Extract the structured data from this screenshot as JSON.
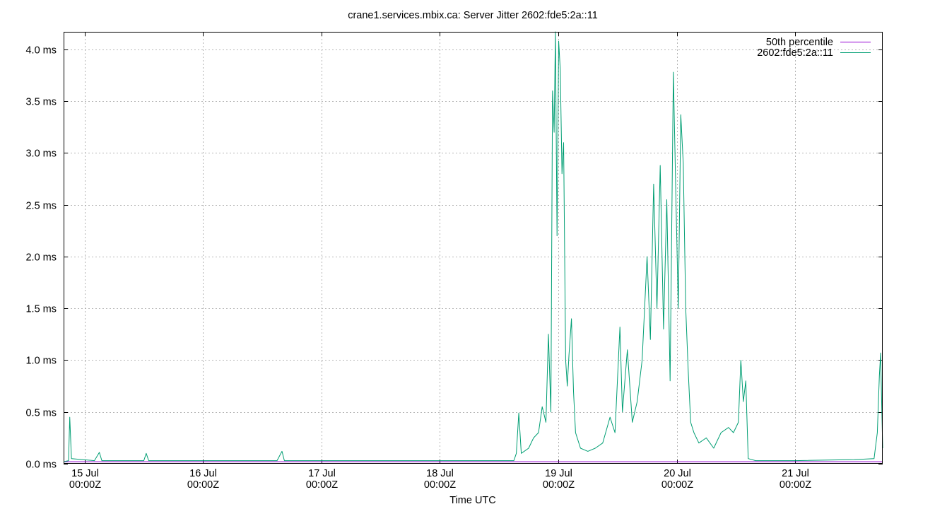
{
  "chart_data": {
    "type": "line",
    "title": "crane1.services.mbix.ca: Server Jitter 2602:fde5:2a::11",
    "xlabel": "Time UTC",
    "ylabel": "",
    "ylim": [
      0,
      4.17
    ],
    "xlim": [
      "2024-07-14 19:45Z",
      "2024-07-21 17:45Z"
    ],
    "x_ticks": [
      {
        "date": "15 Jul",
        "time": "00:00Z"
      },
      {
        "date": "16 Jul",
        "time": "00:00Z"
      },
      {
        "date": "17 Jul",
        "time": "00:00Z"
      },
      {
        "date": "18 Jul",
        "time": "00:00Z"
      },
      {
        "date": "19 Jul",
        "time": "00:00Z"
      },
      {
        "date": "20 Jul",
        "time": "00:00Z"
      },
      {
        "date": "21 Jul",
        "time": "00:00Z"
      }
    ],
    "y_ticks": [
      "0.0 ms",
      "0.5 ms",
      "1.0 ms",
      "1.5 ms",
      "2.0 ms",
      "2.5 ms",
      "3.0 ms",
      "3.5 ms",
      "4.0 ms"
    ],
    "y_tick_values": [
      0,
      0.5,
      1.0,
      1.5,
      2.0,
      2.5,
      3.0,
      3.5,
      4.0
    ],
    "grid": true,
    "legend_position": "top-right",
    "series": [
      {
        "name": "50th percentile",
        "color": "#9400d3",
        "points": [
          [
            "2024-07-14 19:45Z",
            0.02
          ],
          [
            "2024-07-21 17:45Z",
            0.02
          ]
        ]
      },
      {
        "name": "2602:fde5:2a::11",
        "color": "#009e73",
        "points": [
          [
            "2024-07-14 19:45Z",
            0.02
          ],
          [
            "2024-07-14 20:45Z",
            0.03
          ],
          [
            "2024-07-14 21:00Z",
            0.45
          ],
          [
            "2024-07-14 21:20Z",
            0.05
          ],
          [
            "2024-07-15 02:00Z",
            0.03
          ],
          [
            "2024-07-15 03:00Z",
            0.11
          ],
          [
            "2024-07-15 03:30Z",
            0.03
          ],
          [
            "2024-07-15 12:00Z",
            0.03
          ],
          [
            "2024-07-15 12:30Z",
            0.1
          ],
          [
            "2024-07-15 13:00Z",
            0.03
          ],
          [
            "2024-07-16 00:00Z",
            0.03
          ],
          [
            "2024-07-16 15:00Z",
            0.03
          ],
          [
            "2024-07-16 16:00Z",
            0.12
          ],
          [
            "2024-07-16 16:30Z",
            0.03
          ],
          [
            "2024-07-17 00:00Z",
            0.03
          ],
          [
            "2024-07-18 00:00Z",
            0.03
          ],
          [
            "2024-07-18 15:00Z",
            0.03
          ],
          [
            "2024-07-18 15:30Z",
            0.1
          ],
          [
            "2024-07-18 16:00Z",
            0.49
          ],
          [
            "2024-07-18 16:30Z",
            0.1
          ],
          [
            "2024-07-18 18:00Z",
            0.15
          ],
          [
            "2024-07-18 19:00Z",
            0.25
          ],
          [
            "2024-07-18 20:00Z",
            0.3
          ],
          [
            "2024-07-18 20:45Z",
            0.55
          ],
          [
            "2024-07-18 21:30Z",
            0.4
          ],
          [
            "2024-07-18 22:00Z",
            1.25
          ],
          [
            "2024-07-18 22:30Z",
            0.5
          ],
          [
            "2024-07-18 22:50Z",
            3.6
          ],
          [
            "2024-07-18 23:10Z",
            3.2
          ],
          [
            "2024-07-18 23:25Z",
            4.17
          ],
          [
            "2024-07-18 23:45Z",
            2.2
          ],
          [
            "2024-07-19 00:05Z",
            4.08
          ],
          [
            "2024-07-19 00:25Z",
            3.8
          ],
          [
            "2024-07-19 00:45Z",
            2.8
          ],
          [
            "2024-07-19 01:05Z",
            3.1
          ],
          [
            "2024-07-19 01:30Z",
            1.0
          ],
          [
            "2024-07-19 01:50Z",
            0.75
          ],
          [
            "2024-07-19 02:10Z",
            1.05
          ],
          [
            "2024-07-19 02:40Z",
            1.4
          ],
          [
            "2024-07-19 03:05Z",
            0.7
          ],
          [
            "2024-07-19 03:30Z",
            0.3
          ],
          [
            "2024-07-19 04:30Z",
            0.15
          ],
          [
            "2024-07-19 06:00Z",
            0.12
          ],
          [
            "2024-07-19 07:30Z",
            0.15
          ],
          [
            "2024-07-19 09:00Z",
            0.2
          ],
          [
            "2024-07-19 10:30Z",
            0.45
          ],
          [
            "2024-07-19 11:30Z",
            0.3
          ],
          [
            "2024-07-19 12:30Z",
            1.32
          ],
          [
            "2024-07-19 13:00Z",
            0.5
          ],
          [
            "2024-07-19 14:00Z",
            1.1
          ],
          [
            "2024-07-19 15:00Z",
            0.4
          ],
          [
            "2024-07-19 16:00Z",
            0.6
          ],
          [
            "2024-07-19 17:00Z",
            1.0
          ],
          [
            "2024-07-19 18:00Z",
            2.0
          ],
          [
            "2024-07-19 18:40Z",
            1.2
          ],
          [
            "2024-07-19 19:20Z",
            2.7
          ],
          [
            "2024-07-19 20:00Z",
            1.5
          ],
          [
            "2024-07-19 20:40Z",
            2.88
          ],
          [
            "2024-07-19 21:20Z",
            1.3
          ],
          [
            "2024-07-19 22:00Z",
            2.55
          ],
          [
            "2024-07-19 22:40Z",
            0.8
          ],
          [
            "2024-07-19 23:20Z",
            3.78
          ],
          [
            "2024-07-19 23:50Z",
            2.6
          ],
          [
            "2024-07-20 00:20Z",
            1.5
          ],
          [
            "2024-07-20 00:50Z",
            3.37
          ],
          [
            "2024-07-20 01:20Z",
            2.9
          ],
          [
            "2024-07-20 01:50Z",
            1.5
          ],
          [
            "2024-07-20 02:20Z",
            0.9
          ],
          [
            "2024-07-20 02:50Z",
            0.4
          ],
          [
            "2024-07-20 03:30Z",
            0.3
          ],
          [
            "2024-07-20 04:30Z",
            0.2
          ],
          [
            "2024-07-20 06:00Z",
            0.25
          ],
          [
            "2024-07-20 07:30Z",
            0.15
          ],
          [
            "2024-07-20 09:00Z",
            0.3
          ],
          [
            "2024-07-20 10:30Z",
            0.35
          ],
          [
            "2024-07-20 11:30Z",
            0.3
          ],
          [
            "2024-07-20 12:30Z",
            0.4
          ],
          [
            "2024-07-20 13:00Z",
            1.0
          ],
          [
            "2024-07-20 13:30Z",
            0.6
          ],
          [
            "2024-07-20 14:00Z",
            0.8
          ],
          [
            "2024-07-20 14:30Z",
            0.05
          ],
          [
            "2024-07-20 16:00Z",
            0.03
          ],
          [
            "2024-07-21 00:00Z",
            0.03
          ],
          [
            "2024-07-21 12:00Z",
            0.04
          ],
          [
            "2024-07-21 16:00Z",
            0.05
          ],
          [
            "2024-07-21 16:40Z",
            0.3
          ],
          [
            "2024-07-21 17:05Z",
            0.85
          ],
          [
            "2024-07-21 17:20Z",
            1.07
          ],
          [
            "2024-07-21 17:35Z",
            0.5
          ],
          [
            "2024-07-21 17:45Z",
            0.15
          ]
        ]
      }
    ]
  }
}
